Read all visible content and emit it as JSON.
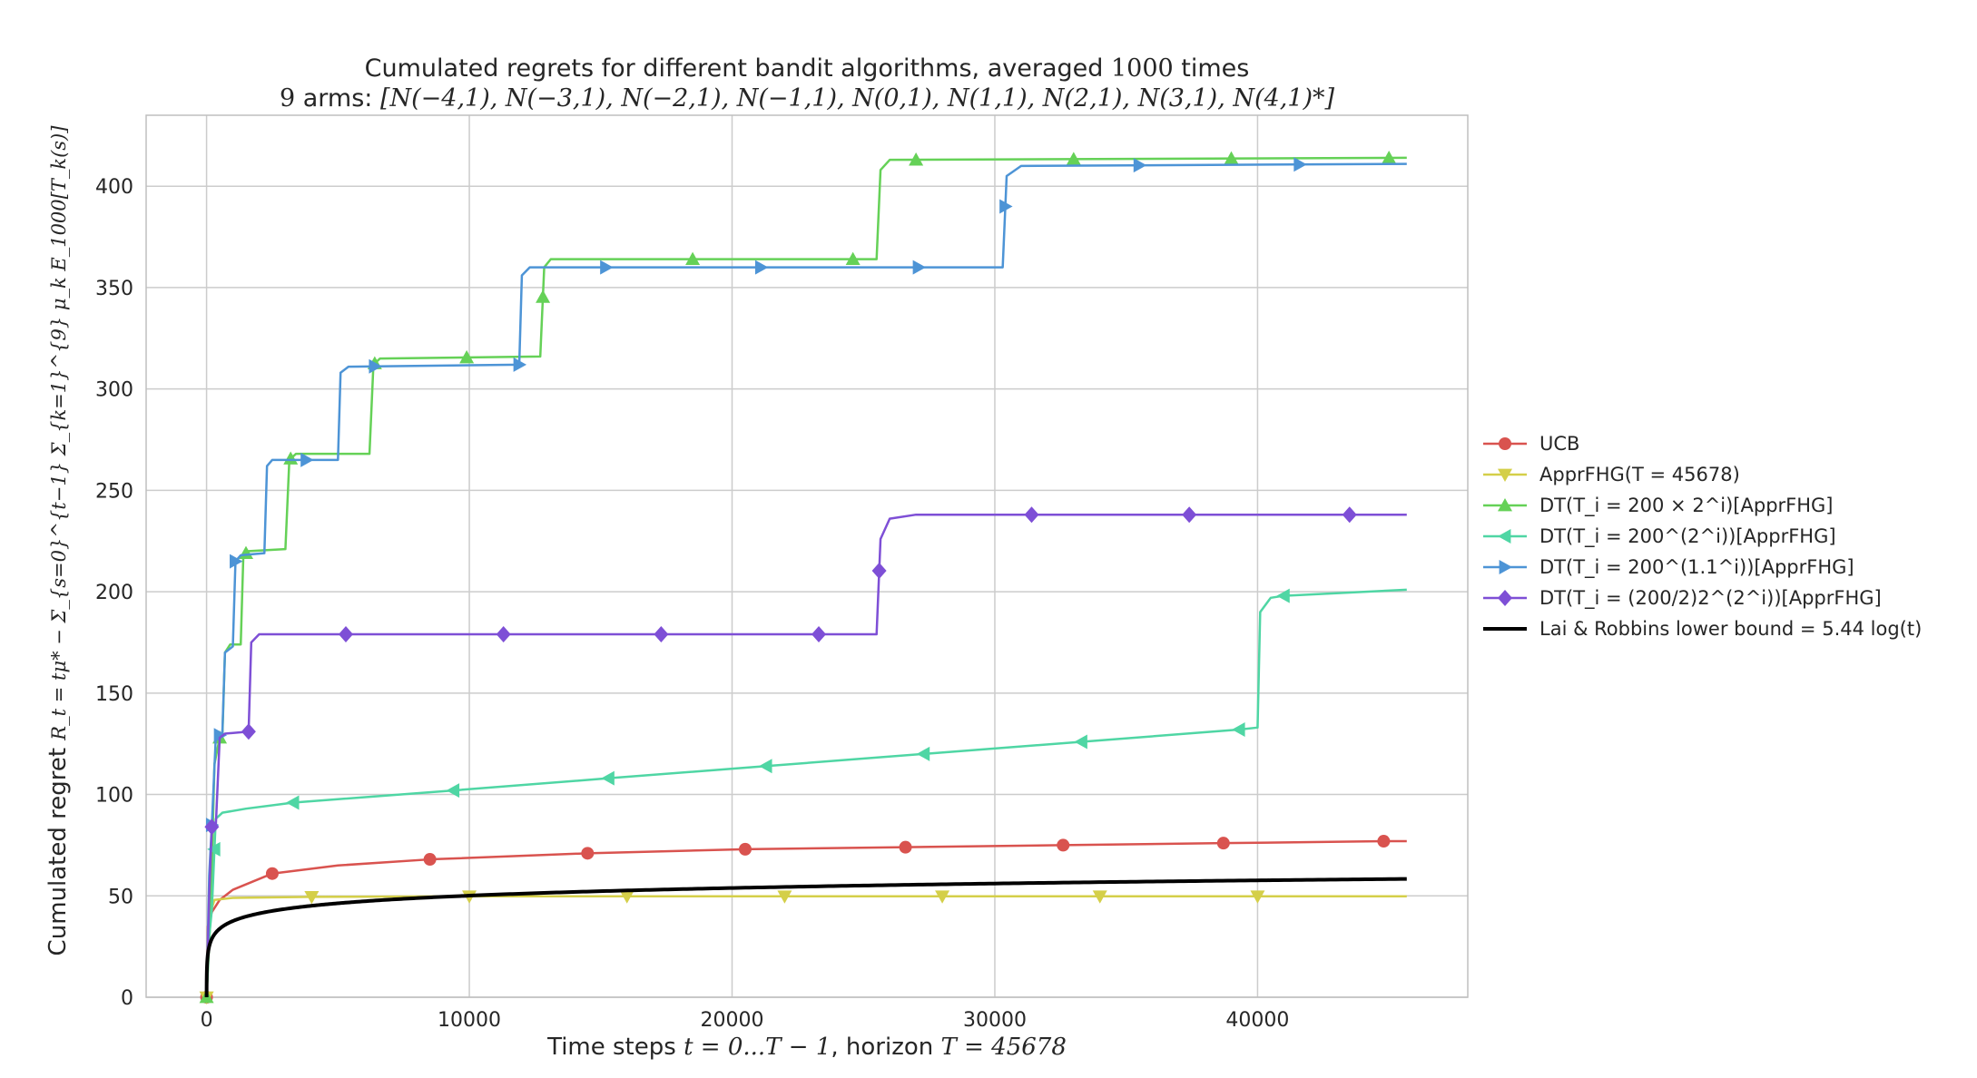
{
  "chart_data": {
    "type": "line",
    "title_line1_prefix": "Cumulated regrets for different bandit algorithms, averaged ",
    "title_line1_value": "1000",
    "title_line1_suffix": " times",
    "title_line2_prefix": "9",
    "title_line2_mid": " arms: ",
    "title_line2_arms": "[N(−4,1), N(−3,1), N(−2,1), N(−1,1), N(0,1), N(1,1), N(2,1), N(3,1), N(4,1)*]",
    "xlabel_prefix": "Time steps ",
    "xlabel_math1": "t = 0...T − 1",
    "xlabel_mid": ", horizon ",
    "xlabel_math2": "T = 45678",
    "ylabel_prefix": "Cumulated regret ",
    "ylabel_math": "R_t = tμ* − Σ_{s=0}^{t−1} Σ_{k=1}^{9} μ_k E_1000[T_k(s)]",
    "xlim": [
      -2300,
      48000
    ],
    "ylim": [
      0,
      435
    ],
    "x_ticks": [
      0,
      10000,
      20000,
      30000,
      40000
    ],
    "x_tick_labels": [
      "0",
      "10000",
      "20000",
      "30000",
      "40000"
    ],
    "y_ticks": [
      0,
      50,
      100,
      150,
      200,
      250,
      300,
      350,
      400
    ],
    "y_tick_labels": [
      "0",
      "50",
      "100",
      "150",
      "200",
      "250",
      "300",
      "350",
      "400"
    ],
    "grid": true,
    "legend_position": "right",
    "series": [
      {
        "name": "UCB",
        "color": "#d9534f",
        "marker": "circle",
        "points": [
          [
            0,
            0
          ],
          [
            50,
            35
          ],
          [
            200,
            42
          ],
          [
            500,
            48
          ],
          [
            1000,
            53
          ],
          [
            2500,
            61
          ],
          [
            5000,
            65
          ],
          [
            8500,
            68
          ],
          [
            14500,
            71
          ],
          [
            20500,
            73
          ],
          [
            26600,
            74
          ],
          [
            32600,
            75
          ],
          [
            38700,
            76
          ],
          [
            45000,
            77
          ],
          [
            45678,
            77
          ]
        ],
        "marker_x": [
          0,
          2500,
          8500,
          14500,
          20500,
          26600,
          32600,
          38700,
          44800
        ]
      },
      {
        "name": "ApprFHG(T = 45678)",
        "color": "#d4cf49",
        "marker": "triangle_down",
        "points": [
          [
            0,
            0
          ],
          [
            100,
            40
          ],
          [
            300,
            48
          ],
          [
            1000,
            49
          ],
          [
            4000,
            49.5
          ],
          [
            10000,
            49.8
          ],
          [
            45678,
            49.8
          ]
        ],
        "marker_x": [
          0,
          4000,
          10000,
          16000,
          22000,
          28000,
          34000,
          40000
        ]
      },
      {
        "name": "DT(T_i = 200 × 2^i)[ApprFHG]",
        "color": "#65d157",
        "marker": "triangle_up",
        "points": [
          [
            0,
            0
          ],
          [
            150,
            40
          ],
          [
            300,
            115
          ],
          [
            500,
            128
          ],
          [
            600,
            128
          ],
          [
            700,
            170
          ],
          [
            900,
            174
          ],
          [
            1300,
            174
          ],
          [
            1400,
            218
          ],
          [
            1600,
            220
          ],
          [
            3000,
            221
          ],
          [
            3150,
            265
          ],
          [
            3400,
            268
          ],
          [
            6200,
            268
          ],
          [
            6350,
            312
          ],
          [
            6600,
            315
          ],
          [
            12700,
            316
          ],
          [
            12850,
            360
          ],
          [
            13100,
            364
          ],
          [
            25500,
            364
          ],
          [
            25650,
            408
          ],
          [
            26000,
            413
          ],
          [
            45678,
            414
          ]
        ],
        "marker_x": [
          0,
          500,
          1500,
          3200,
          6400,
          9900,
          12800,
          18500,
          24600,
          27000,
          33000,
          39000,
          45000
        ]
      },
      {
        "name": "DT(T_i = 200^(2^i))[ApprFHG]",
        "color": "#4fd6a4",
        "marker": "triangle_left",
        "points": [
          [
            0,
            0
          ],
          [
            100,
            30
          ],
          [
            200,
            43
          ],
          [
            350,
            88
          ],
          [
            600,
            91
          ],
          [
            1500,
            93
          ],
          [
            3300,
            96
          ],
          [
            9400,
            102
          ],
          [
            15300,
            108
          ],
          [
            21300,
            114
          ],
          [
            27300,
            120
          ],
          [
            33300,
            126
          ],
          [
            39300,
            132
          ],
          [
            40000,
            133
          ],
          [
            40100,
            190
          ],
          [
            40500,
            197
          ],
          [
            41000,
            198
          ],
          [
            45678,
            201
          ]
        ],
        "marker_x": [
          300,
          3300,
          9400,
          15300,
          21300,
          27300,
          33300,
          39300,
          41000
        ]
      },
      {
        "name": "DT(T_i = 200^(1.1^i))[ApprFHG]",
        "color": "#4d94d6",
        "marker": "triangle_right",
        "points": [
          [
            0,
            0
          ],
          [
            100,
            60
          ],
          [
            200,
            85
          ],
          [
            350,
            128
          ],
          [
            600,
            130
          ],
          [
            700,
            170
          ],
          [
            900,
            172
          ],
          [
            1000,
            173
          ],
          [
            1100,
            215
          ],
          [
            1300,
            218
          ],
          [
            2200,
            219
          ],
          [
            2300,
            262
          ],
          [
            2500,
            265
          ],
          [
            5000,
            265
          ],
          [
            5100,
            308
          ],
          [
            5400,
            311
          ],
          [
            11900,
            312
          ],
          [
            12000,
            356
          ],
          [
            12300,
            360
          ],
          [
            30300,
            360
          ],
          [
            30450,
            405
          ],
          [
            31000,
            410
          ],
          [
            45678,
            411
          ]
        ],
        "marker_x": [
          200,
          500,
          1100,
          3800,
          6400,
          11900,
          15200,
          21100,
          27100,
          30400,
          35500,
          41600
        ]
      },
      {
        "name": "DT(T_i = (200/2)2^(2^i))[ApprFHG]",
        "color": "#7e4fd6",
        "marker": "diamond",
        "points": [
          [
            0,
            0
          ],
          [
            100,
            50
          ],
          [
            200,
            84
          ],
          [
            350,
            84
          ],
          [
            500,
            128
          ],
          [
            700,
            130
          ],
          [
            1600,
            131
          ],
          [
            1700,
            175
          ],
          [
            2000,
            179
          ],
          [
            25500,
            179
          ],
          [
            25650,
            226
          ],
          [
            26000,
            236
          ],
          [
            27000,
            238
          ],
          [
            45678,
            238
          ]
        ],
        "marker_x": [
          200,
          1600,
          5300,
          11300,
          17300,
          23300,
          25600,
          31400,
          37400,
          43500
        ]
      },
      {
        "name": "Lai & Robbins lower bound = 5.44 log(t)",
        "color": "#000000",
        "marker": "none",
        "coef": 5.44
      }
    ]
  }
}
